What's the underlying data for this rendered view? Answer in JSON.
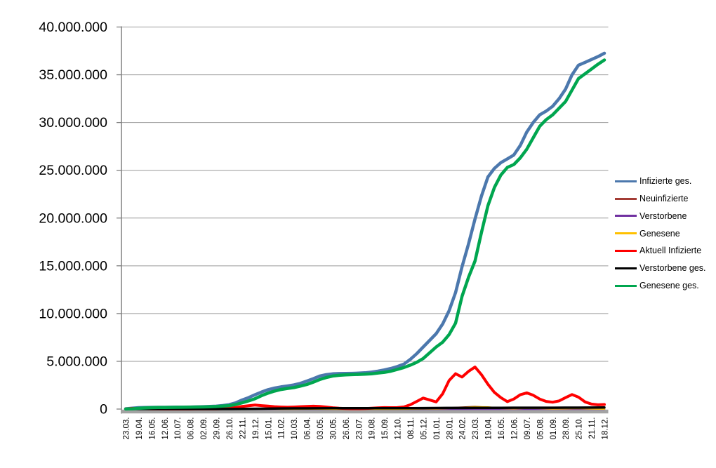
{
  "chart_data": {
    "type": "line",
    "title": "",
    "grid": true,
    "legend_position": "right",
    "style": {
      "background": "#FFFFFF",
      "gridline_color": "#9A9A9A",
      "axis_color": "#808080",
      "axis_band_color": "#A3A3A3",
      "text_color": "#000000"
    },
    "y_axis": {
      "max_millions": 40,
      "tick_values_millions": [
        0,
        5,
        10,
        15,
        20,
        25,
        30,
        35,
        40
      ],
      "tick_labels": [
        "0",
        "5.000.000",
        "10.000.000",
        "15.000.000",
        "20.000.000",
        "25.000.000",
        "30.000.000",
        "35.000.000",
        "40.000.000"
      ]
    },
    "x_axis": {
      "tick_labels": [
        "23.03.",
        "19.04.",
        "16.05.",
        "12.06.",
        "10.07.",
        "06.08.",
        "02.09.",
        "29.09.",
        "26.10.",
        "22.11.",
        "19.12.",
        "15.01.",
        "11.02.",
        "10.03.",
        "06.04.",
        "03.05.",
        "30.05.",
        "26.06.",
        "23.07.",
        "19.08.",
        "15.09.",
        "12.10.",
        "08.11.",
        "05.12.",
        "01.01.",
        "28.01.",
        "24.02.",
        "23.03.",
        "19.04.",
        "16.05.",
        "12.06.",
        "09.07.",
        "05.08.",
        "01.09.",
        "28.09.",
        "25.10.",
        "21.11.",
        "18.12."
      ]
    },
    "series": [
      {
        "name": "Infizierte ges.",
        "color": "#4C78AD",
        "line_width": 4.5,
        "values_millions": [
          0.03,
          0.09,
          0.145,
          0.165,
          0.175,
          0.182,
          0.187,
          0.193,
          0.199,
          0.207,
          0.215,
          0.23,
          0.248,
          0.27,
          0.3,
          0.37,
          0.46,
          0.65,
          0.95,
          1.2,
          1.5,
          1.78,
          2.03,
          2.2,
          2.32,
          2.42,
          2.53,
          2.69,
          2.93,
          3.18,
          3.45,
          3.6,
          3.69,
          3.72,
          3.73,
          3.74,
          3.76,
          3.8,
          3.87,
          3.97,
          4.1,
          4.25,
          4.45,
          4.7,
          5.2,
          5.8,
          6.5,
          7.2,
          7.9,
          8.9,
          10.3,
          12.2,
          14.9,
          17.3,
          19.9,
          22.3,
          24.3,
          25.2,
          25.8,
          26.2,
          26.6,
          27.6,
          29.0,
          30.0,
          30.8,
          31.2,
          31.7,
          32.5,
          33.5,
          35.0,
          36.0,
          36.3,
          36.6,
          36.9,
          37.25
        ]
      },
      {
        "name": "Neuinfizierte",
        "color": "#A33C35",
        "line_width": 2.5,
        "values_millions": [
          0.003,
          0.002,
          0.001,
          0.0005,
          0.0005,
          0.001,
          0.0015,
          0.002,
          0.008,
          0.02,
          0.025,
          0.018,
          0.008,
          0.01,
          0.018,
          0.018,
          0.006,
          0.001,
          0.0015,
          0.006,
          0.01,
          0.009,
          0.03,
          0.055,
          0.035,
          0.12,
          0.18,
          0.25,
          0.16,
          0.06,
          0.07,
          0.12,
          0.06,
          0.035,
          0.08,
          0.07,
          0.025,
          0.02
        ]
      },
      {
        "name": "Verstorbene",
        "color": "#7030A0",
        "line_width": 2.5,
        "values_millions": [
          0.0002,
          0.0006,
          0.0004,
          0.0002,
          0.0001,
          0.0001,
          0.0001,
          0.0001,
          0.0002,
          0.0004,
          0.0006,
          0.0009,
          0.0006,
          0.0003,
          0.0002,
          0.0002,
          0.0001,
          0.0001,
          0.0001,
          0.0001,
          0.0002,
          0.0002,
          0.0003,
          0.0004,
          0.0004,
          0.0003,
          0.0002,
          0.0003,
          0.0003,
          0.0002,
          0.0002,
          0.0002,
          0.0002,
          0.0002,
          0.0002,
          0.0002,
          0.0002,
          0.0002
        ]
      },
      {
        "name": "Genesene",
        "color": "#FFC000",
        "line_width": 2.5,
        "values_millions": [
          0.002,
          0.003,
          0.002,
          0.001,
          0.0005,
          0.0008,
          0.001,
          0.0015,
          0.004,
          0.015,
          0.022,
          0.022,
          0.01,
          0.008,
          0.015,
          0.02,
          0.01,
          0.002,
          0.001,
          0.004,
          0.009,
          0.009,
          0.02,
          0.045,
          0.04,
          0.08,
          0.15,
          0.22,
          0.2,
          0.08,
          0.055,
          0.1,
          0.08,
          0.04,
          0.06,
          0.08,
          0.04,
          0.02
        ]
      },
      {
        "name": "Aktuell Infizierte",
        "color": "#FF0000",
        "line_width": 4,
        "values_millions": [
          0.025,
          0.07,
          0.06,
          0.035,
          0.02,
          0.012,
          0.008,
          0.007,
          0.007,
          0.008,
          0.01,
          0.013,
          0.016,
          0.019,
          0.023,
          0.04,
          0.09,
          0.16,
          0.28,
          0.35,
          0.42,
          0.36,
          0.31,
          0.25,
          0.21,
          0.19,
          0.21,
          0.25,
          0.28,
          0.3,
          0.28,
          0.21,
          0.14,
          0.09,
          0.06,
          0.04,
          0.035,
          0.05,
          0.09,
          0.13,
          0.155,
          0.15,
          0.155,
          0.22,
          0.45,
          0.8,
          1.15,
          0.95,
          0.75,
          1.6,
          3.0,
          3.7,
          3.35,
          3.95,
          4.4,
          3.6,
          2.6,
          1.75,
          1.2,
          0.78,
          1.05,
          1.5,
          1.7,
          1.45,
          1.05,
          0.8,
          0.72,
          0.85,
          1.2,
          1.52,
          1.25,
          0.75,
          0.52,
          0.45,
          0.48
        ]
      },
      {
        "name": "Verstorbene ges.",
        "color": "#000000",
        "line_width": 3.5,
        "values_millions": [
          0.002,
          0.005,
          0.008,
          0.009,
          0.009,
          0.009,
          0.009,
          0.01,
          0.01,
          0.014,
          0.026,
          0.046,
          0.063,
          0.072,
          0.077,
          0.083,
          0.088,
          0.09,
          0.091,
          0.092,
          0.093,
          0.094,
          0.097,
          0.103,
          0.112,
          0.117,
          0.121,
          0.126,
          0.13,
          0.134,
          0.136,
          0.138,
          0.14,
          0.142,
          0.144,
          0.148,
          0.152,
          0.158
        ]
      },
      {
        "name": "Genesene ges.",
        "color": "#00A64F",
        "line_width": 4.5,
        "values_millions": [
          0.005,
          0.03,
          0.08,
          0.12,
          0.148,
          0.16,
          0.17,
          0.177,
          0.183,
          0.19,
          0.196,
          0.21,
          0.223,
          0.245,
          0.267,
          0.31,
          0.36,
          0.48,
          0.655,
          0.85,
          1.09,
          1.4,
          1.67,
          1.88,
          2.05,
          2.16,
          2.25,
          2.4,
          2.57,
          2.82,
          3.09,
          3.3,
          3.46,
          3.53,
          3.58,
          3.61,
          3.63,
          3.66,
          3.69,
          3.77,
          3.85,
          3.97,
          4.15,
          4.35,
          4.6,
          4.9,
          5.3,
          5.9,
          6.5,
          7.0,
          7.8,
          9.0,
          11.8,
          13.8,
          15.5,
          18.5,
          21.3,
          23.2,
          24.5,
          25.3,
          25.6,
          26.3,
          27.2,
          28.4,
          29.6,
          30.3,
          30.8,
          31.5,
          32.2,
          33.4,
          34.6,
          35.1,
          35.6,
          36.1,
          36.55
        ]
      }
    ]
  }
}
